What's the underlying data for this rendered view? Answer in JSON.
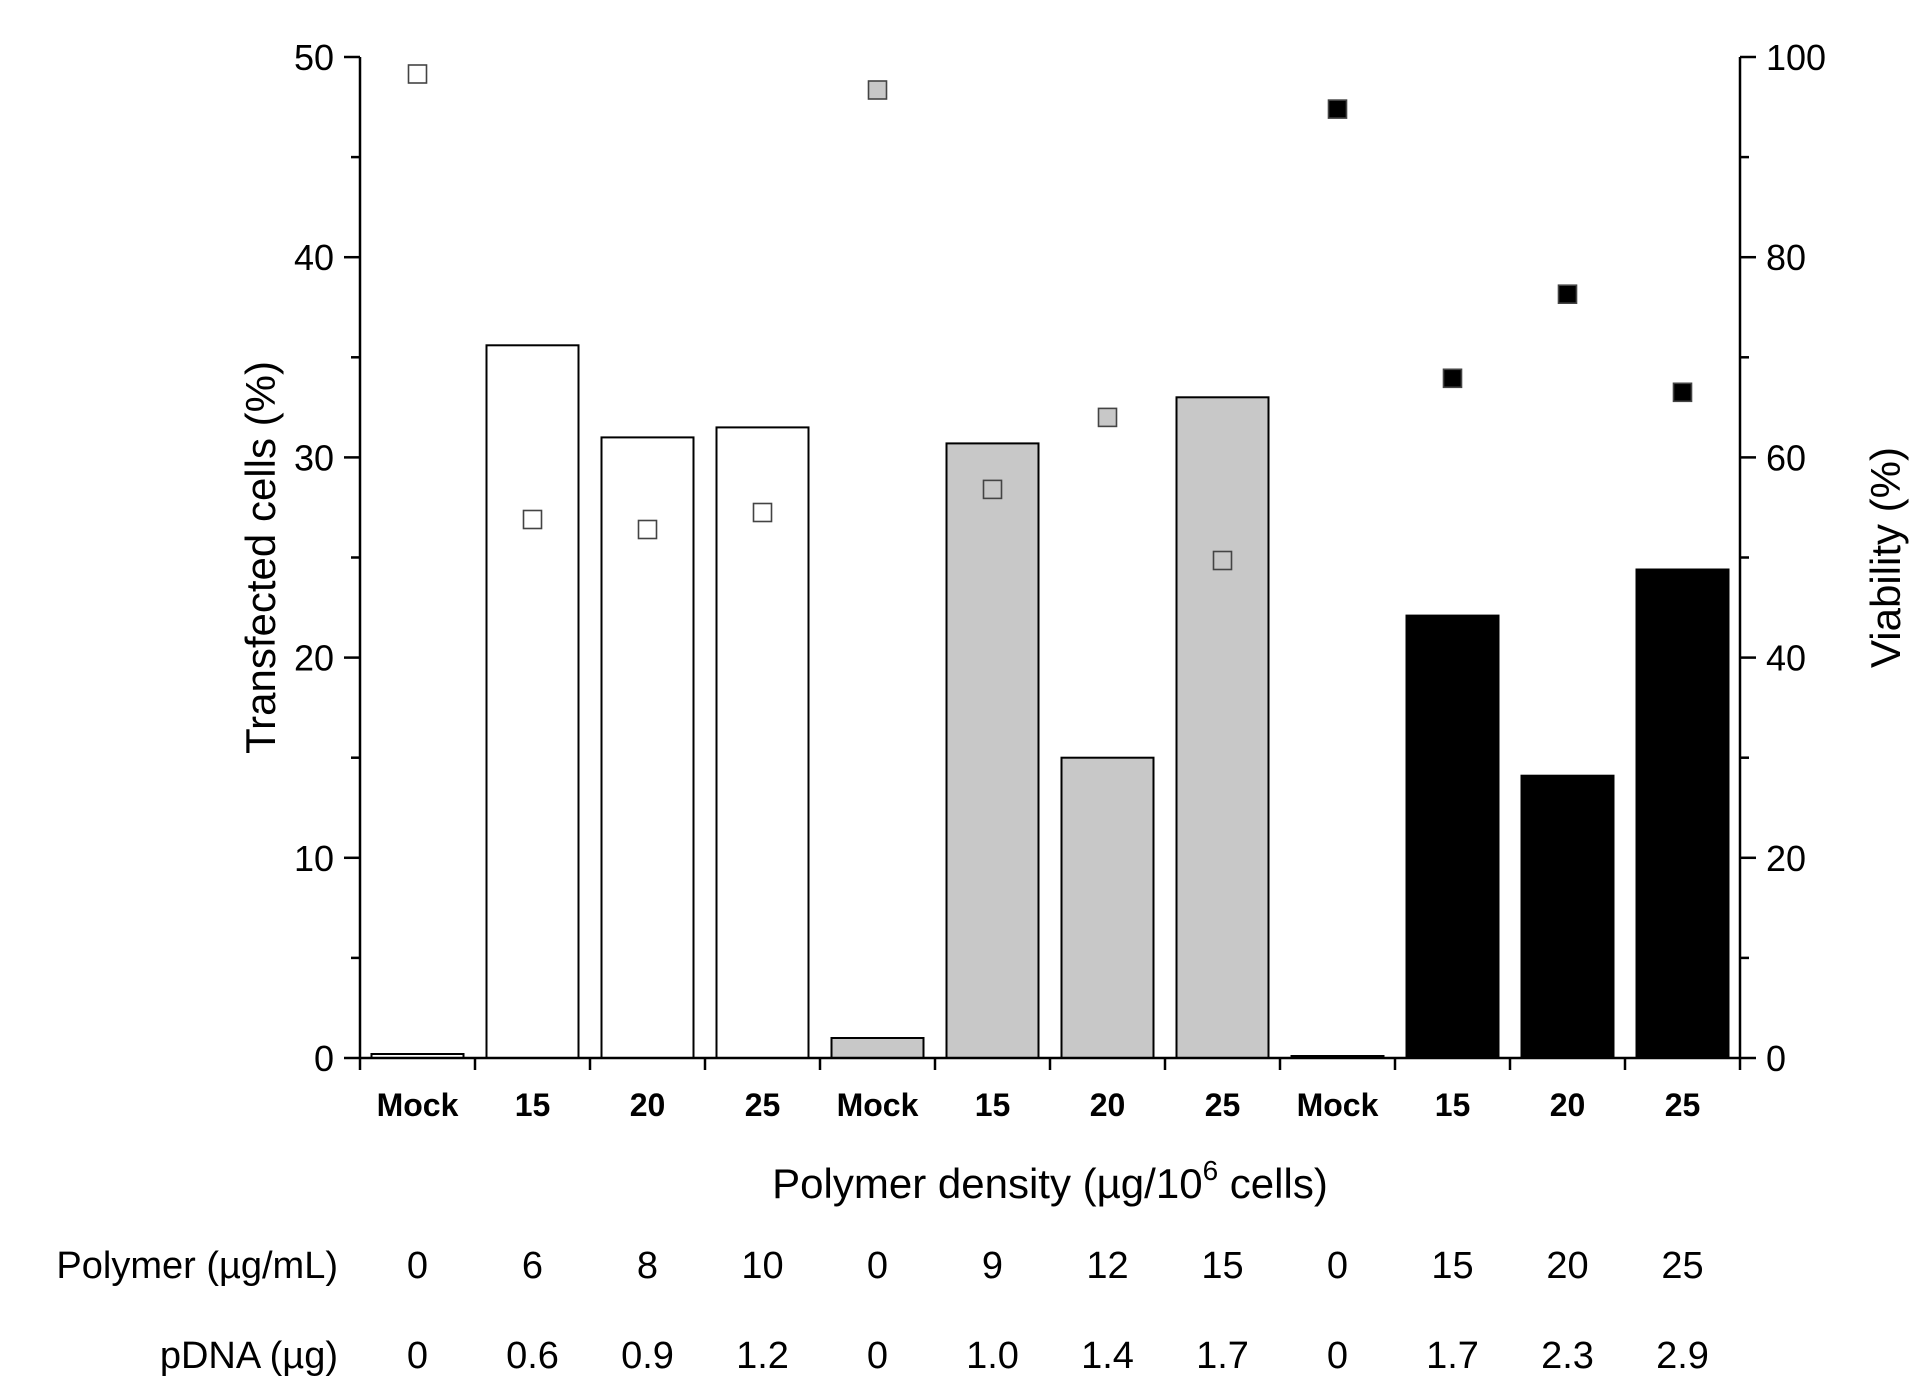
{
  "chart_data": {
    "type": "bar",
    "categories": [
      "Mock",
      "15",
      "20",
      "25",
      "Mock",
      "15",
      "20",
      "25",
      "Mock",
      "15",
      "20",
      "25"
    ],
    "series": [
      {
        "values": [
          0.2,
          35.6,
          31.0,
          31.5,
          1.0,
          30.7,
          15.0,
          33.0,
          0.1,
          22.1,
          14.1,
          24.4
        ],
        "axis": "left",
        "style": "bar"
      },
      {
        "values": [
          98.3,
          53.8,
          52.8,
          54.5,
          96.7,
          56.8,
          64.0,
          49.7,
          94.8,
          67.9,
          76.3,
          66.5
        ],
        "axis": "right",
        "style": "square-marker"
      }
    ],
    "group_fill_colors": [
      "#ffffff",
      "#c8c8c8",
      "#000000"
    ],
    "xlabel": "Polymer density (µg/10",
    "xlabel_superscript": "6",
    "xlabel_suffix": " cells)",
    "ylabel": "Transfected cells (%)",
    "y2label": "Viability (%)",
    "ylim": [
      0,
      50
    ],
    "y2lim": [
      0,
      100
    ],
    "yticks": [
      "0",
      "10",
      "20",
      "30",
      "40",
      "50"
    ],
    "y2ticks": [
      "0",
      "20",
      "40",
      "60",
      "80",
      "100"
    ],
    "grid": false,
    "table_rows": [
      {
        "label": "Polymer (µg/mL)",
        "values": [
          "0",
          "6",
          "8",
          "10",
          "0",
          "9",
          "12",
          "15",
          "0",
          "15",
          "20",
          "25"
        ]
      },
      {
        "label": "pDNA (µg)",
        "values": [
          "0",
          "0.6",
          "0.9",
          "1.2",
          "0",
          "1.0",
          "1.4",
          "1.7",
          "0",
          "1.7",
          "2.3",
          "2.9"
        ]
      }
    ]
  }
}
